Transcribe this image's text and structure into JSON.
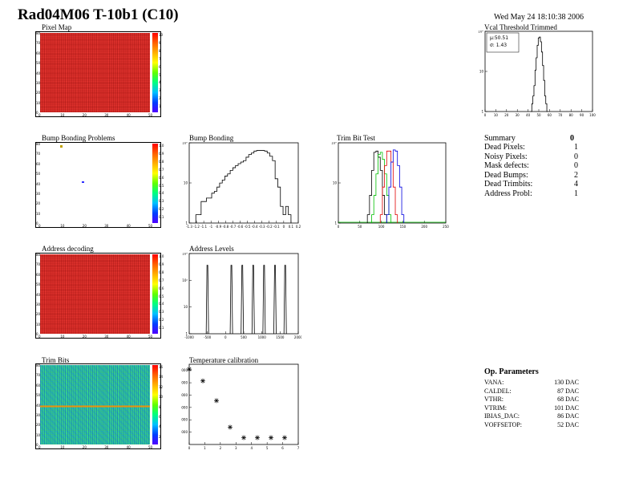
{
  "header": {
    "title": "Rad04M06 T-10b1 (C10)",
    "date": "Wed May 24 18:10:38 2006"
  },
  "pixel_map": {
    "title": "Pixel Map",
    "fill_color": "#f03a34",
    "palette_labels": [
      "10",
      "9",
      "8",
      "7",
      "6",
      "5",
      "4",
      "3",
      "2",
      "1"
    ],
    "x_ticks": [
      "0",
      "10",
      "20",
      "30",
      "40",
      "50"
    ],
    "y_ticks": [
      "0",
      "10",
      "20",
      "30",
      "40",
      "50",
      "60",
      "70",
      "80"
    ]
  },
  "bump_problems": {
    "title": "Bump Bonding Problems",
    "palette_labels": [
      "1.0",
      "0.9",
      "0.8",
      "0.7",
      "0.6",
      "0.5",
      "0.4",
      "0.3",
      "0.2",
      "0.1"
    ],
    "x_ticks": [
      "0",
      "10",
      "20",
      "30",
      "40",
      "50"
    ],
    "y_ticks": [
      "0",
      "10",
      "20",
      "30",
      "40",
      "50",
      "60",
      "70",
      "80"
    ]
  },
  "address_decoding": {
    "title": "Address decoding",
    "palette_labels": [
      "1.0",
      "0.9",
      "0.8",
      "0.7",
      "0.6",
      "0.5",
      "0.4",
      "0.3",
      "0.2",
      "0.1"
    ],
    "x_ticks": [
      "0",
      "10",
      "20",
      "30",
      "40",
      "50"
    ],
    "y_ticks": [
      "0",
      "10",
      "20",
      "30",
      "40",
      "50",
      "60",
      "70",
      "80"
    ]
  },
  "trim_bits": {
    "title": "Trim Bits",
    "palette_labels": [
      "16",
      "14",
      "12",
      "10",
      "8",
      "6",
      "4",
      "2"
    ],
    "x_ticks": [
      "0",
      "10",
      "20",
      "30",
      "40",
      "50"
    ],
    "y_ticks": [
      "0",
      "10",
      "20",
      "30",
      "40",
      "50",
      "60",
      "70",
      "80"
    ]
  },
  "summary": {
    "title": "Summary",
    "total": "0",
    "rows": [
      {
        "label": "Dead Pixels:",
        "value": "1"
      },
      {
        "label": "Noisy Pixels:",
        "value": "0"
      },
      {
        "label": "Mask defects:",
        "value": "0"
      },
      {
        "label": "Dead Bumps:",
        "value": "2"
      },
      {
        "label": "Dead Trimbits:",
        "value": "4"
      },
      {
        "label": "Address Probl:",
        "value": "1"
      }
    ]
  },
  "op_parameters": {
    "title": "Op. Parameters",
    "rows": [
      {
        "label": "VANA:",
        "value": "130 DAC"
      },
      {
        "label": "CALDEL:",
        "value": "87 DAC"
      },
      {
        "label": "VTHR:",
        "value": "68 DAC"
      },
      {
        "label": "VTRIM:",
        "value": "101 DAC"
      },
      {
        "label": "IBIAS_DAC:",
        "value": "86 DAC"
      },
      {
        "label": "VOFFSETOP:",
        "value": "52 DAC"
      }
    ]
  },
  "chart_data": [
    {
      "id": "vcal",
      "type": "line",
      "title": "Vcal Threshold Trimmed",
      "stats": [
        "μ:50.51",
        "σ: 1.43"
      ],
      "xlim": [
        0,
        100
      ],
      "x_ticks": [
        "0",
        "10",
        "20",
        "30",
        "40",
        "50",
        "60",
        "70",
        "80",
        "90",
        "100"
      ],
      "y_log": true,
      "y_ticks": [
        "1",
        "10",
        "10²"
      ],
      "x": [
        43,
        44,
        45,
        46,
        47,
        48,
        49,
        50,
        51,
        52,
        53,
        54,
        55,
        56,
        57,
        58
      ],
      "values": [
        0,
        1,
        2,
        5,
        20,
        60,
        180,
        350,
        380,
        250,
        100,
        30,
        8,
        2,
        1,
        0
      ]
    },
    {
      "id": "bump_bonding",
      "type": "line",
      "title": "Bump Bonding",
      "xlim": [
        -1.4,
        0.25
      ],
      "x_ticks": [
        "-1.3",
        "-1.2",
        "-1.1",
        "-1",
        "-0.9",
        "-0.8",
        "-0.7",
        "-0.6",
        "-0.5",
        "-0.4",
        "-0.3",
        "-0.2",
        "-0.1",
        "0",
        "0.1",
        "0.2"
      ],
      "y_log": true,
      "y_ticks": [
        "1",
        "10",
        "10²"
      ],
      "x": [
        -1.28,
        -1.24,
        -1.2,
        -1.16,
        -1.12,
        -1.08,
        -1.04,
        -1.0,
        -0.96,
        -0.92,
        -0.88,
        -0.84,
        -0.8,
        -0.76,
        -0.72,
        -0.68,
        -0.64,
        -0.6,
        -0.56,
        -0.52,
        -0.48,
        -0.44,
        -0.4,
        -0.36,
        -0.32,
        -0.28,
        -0.24,
        -0.2,
        -0.16,
        -0.12,
        -0.08,
        -0.04,
        0.0,
        0.04,
        0.08,
        0.12
      ],
      "values": [
        1,
        1,
        3,
        3,
        4,
        4,
        6,
        7,
        10,
        14,
        18,
        25,
        30,
        40,
        50,
        60,
        70,
        80,
        90,
        120,
        150,
        170,
        200,
        210,
        210,
        210,
        200,
        170,
        130,
        90,
        20,
        10,
        2,
        1,
        2,
        1
      ]
    },
    {
      "id": "trim_bit_test",
      "type": "line",
      "title": "Trim Bit Test",
      "xlim": [
        0,
        250
      ],
      "x_ticks": [
        "0",
        "50",
        "100",
        "150",
        "200",
        "250"
      ],
      "y_log": true,
      "y_ticks": [
        "1",
        "10",
        "10²"
      ],
      "series": [
        {
          "color": "#000000",
          "x": [
            70,
            75,
            80,
            85,
            90,
            95,
            100,
            105,
            110
          ],
          "values": [
            1,
            5,
            40,
            180,
            200,
            120,
            40,
            5,
            1
          ]
        },
        {
          "color": "#00c000",
          "x": [
            80,
            85,
            90,
            95,
            100,
            105,
            110,
            115,
            120
          ],
          "values": [
            1,
            5,
            30,
            150,
            180,
            100,
            30,
            5,
            1
          ]
        },
        {
          "color": "#e00000",
          "x": [
            100,
            105,
            110,
            115,
            120,
            125,
            130,
            135
          ],
          "values": [
            1,
            10,
            60,
            200,
            200,
            80,
            10,
            1
          ]
        },
        {
          "color": "#0000e0",
          "x": [
            115,
            120,
            125,
            130,
            135,
            140,
            145,
            150
          ],
          "values": [
            1,
            10,
            80,
            220,
            200,
            60,
            10,
            1
          ]
        }
      ]
    },
    {
      "id": "address_levels",
      "type": "line",
      "title": "Address Levels",
      "xlim": [
        -1000,
        2000
      ],
      "x_ticks": [
        "-1000",
        "-500",
        "0",
        "500",
        "1000",
        "1500",
        "2000"
      ],
      "y_log": true,
      "y_ticks": [
        "1",
        "10",
        "10²",
        "10³"
      ],
      "peaks_x": [
        -500,
        160,
        460,
        760,
        1060,
        1360,
        1640
      ],
      "peak_value": 400
    },
    {
      "id": "temperature_calibration",
      "type": "scatter",
      "title": "Temperature calibration",
      "xlim": [
        0,
        8
      ],
      "x_ticks": [
        "0",
        "1",
        "2",
        "3",
        "4",
        "5",
        "6",
        "7"
      ],
      "ylim": [
        0,
        13000
      ],
      "y_ticks": [
        "2000",
        "4000",
        "6000",
        "8000",
        "10000",
        "12000"
      ],
      "x": [
        0,
        1,
        2,
        3,
        4,
        5,
        6,
        7
      ],
      "values": [
        12200,
        10300,
        7100,
        2800,
        1100,
        1100,
        1100,
        1100
      ]
    }
  ]
}
